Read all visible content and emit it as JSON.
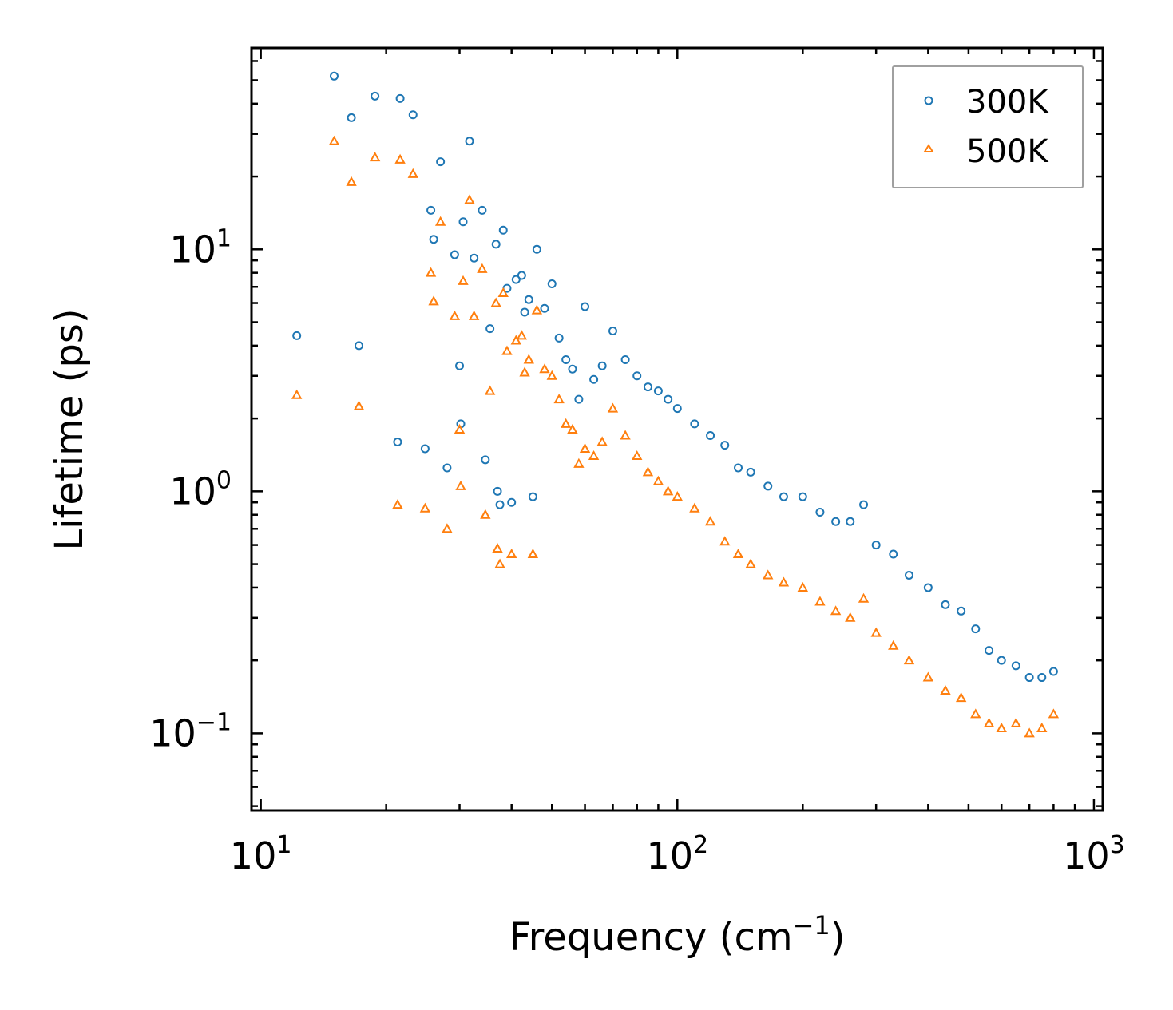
{
  "chart_data": {
    "type": "scatter",
    "title": "",
    "xlabel": "Frequency (cm",
    "xlabel_sup": "−1",
    "xlabel_suffix": ")",
    "ylabel": "Lifetime (ps)",
    "xscale": "log",
    "yscale": "log",
    "xlim": [
      9.5,
      1050
    ],
    "ylim": [
      0.048,
      68
    ],
    "x_ticks": [
      {
        "value": 10,
        "base": "10",
        "exp": "1"
      },
      {
        "value": 100,
        "base": "10",
        "exp": "2"
      },
      {
        "value": 1000,
        "base": "10",
        "exp": "3"
      }
    ],
    "y_ticks": [
      {
        "value": 0.1,
        "base": "10",
        "exp": "−1"
      },
      {
        "value": 1,
        "base": "10",
        "exp": "0"
      },
      {
        "value": 10,
        "base": "10",
        "exp": "1"
      }
    ],
    "legend_position": "top-right",
    "series": [
      {
        "name": "300K",
        "marker": "circle",
        "color": "#1f77b4",
        "x": [
          12.2,
          15.0,
          16.5,
          17.2,
          18.8,
          21.3,
          21.6,
          23.2,
          24.8,
          25.6,
          26.0,
          27.0,
          28.0,
          29.2,
          30.0,
          30.2,
          30.6,
          31.7,
          32.5,
          34.0,
          34.6,
          35.5,
          36.7,
          37.0,
          37.5,
          38.2,
          39.0,
          40.0,
          41.0,
          42.3,
          43.0,
          44.0,
          45.0,
          46.0,
          48.0,
          50.0,
          52.0,
          54.0,
          56.0,
          58.0,
          60.0,
          63.0,
          66.0,
          70.0,
          75.0,
          80.0,
          85.0,
          90.0,
          95.0,
          100.0,
          110.0,
          120.0,
          130.0,
          140.0,
          150.0,
          165.0,
          180.0,
          200.0,
          220.0,
          240.0,
          260.0,
          280.0,
          300.0,
          330.0,
          360.0,
          400.0,
          440.0,
          480.0,
          520.0,
          560.0,
          600.0,
          650.0,
          700.0,
          750.0,
          800.0
        ],
        "y": [
          4.4,
          52.0,
          35.0,
          4.0,
          43.0,
          1.6,
          42.0,
          36.0,
          1.5,
          14.5,
          11.0,
          23.0,
          1.25,
          9.5,
          3.3,
          1.9,
          13.0,
          28.0,
          9.2,
          14.5,
          1.35,
          4.7,
          10.5,
          1.0,
          0.88,
          12.0,
          6.9,
          0.9,
          7.5,
          7.8,
          5.5,
          6.2,
          0.95,
          10.0,
          5.7,
          7.2,
          4.3,
          3.5,
          3.2,
          2.4,
          5.8,
          2.9,
          3.3,
          4.6,
          3.5,
          3.0,
          2.7,
          2.6,
          2.4,
          2.2,
          1.9,
          1.7,
          1.55,
          1.25,
          1.2,
          1.05,
          0.95,
          0.95,
          0.82,
          0.75,
          0.75,
          0.88,
          0.6,
          0.55,
          0.45,
          0.4,
          0.34,
          0.32,
          0.27,
          0.22,
          0.2,
          0.19,
          0.17,
          0.17,
          0.18
        ]
      },
      {
        "name": "500K",
        "marker": "triangle",
        "color": "#ff7f0e",
        "x": [
          12.2,
          15.0,
          16.5,
          17.2,
          18.8,
          21.3,
          21.6,
          23.2,
          24.8,
          25.6,
          26.0,
          27.0,
          28.0,
          29.2,
          30.0,
          30.2,
          30.6,
          31.7,
          32.5,
          34.0,
          34.6,
          35.5,
          36.7,
          37.0,
          37.5,
          38.2,
          39.0,
          40.0,
          41.0,
          42.3,
          43.0,
          44.0,
          45.0,
          46.0,
          48.0,
          50.0,
          52.0,
          54.0,
          56.0,
          58.0,
          60.0,
          63.0,
          66.0,
          70.0,
          75.0,
          80.0,
          85.0,
          90.0,
          95.0,
          100.0,
          110.0,
          120.0,
          130.0,
          140.0,
          150.0,
          165.0,
          180.0,
          200.0,
          220.0,
          240.0,
          260.0,
          280.0,
          300.0,
          330.0,
          360.0,
          400.0,
          440.0,
          480.0,
          520.0,
          560.0,
          600.0,
          650.0,
          700.0,
          750.0,
          800.0
        ],
        "y": [
          2.5,
          28.0,
          19.0,
          2.25,
          24.0,
          0.88,
          23.5,
          20.5,
          0.85,
          8.0,
          6.1,
          13.0,
          0.7,
          5.3,
          1.8,
          1.05,
          7.4,
          16.0,
          5.3,
          8.3,
          0.8,
          2.6,
          6.0,
          0.58,
          0.5,
          6.6,
          3.8,
          0.55,
          4.2,
          4.4,
          3.1,
          3.5,
          0.55,
          5.6,
          3.2,
          3.0,
          2.4,
          1.9,
          1.8,
          1.3,
          1.5,
          1.4,
          1.6,
          2.2,
          1.7,
          1.4,
          1.2,
          1.1,
          1.0,
          0.95,
          0.85,
          0.75,
          0.62,
          0.55,
          0.5,
          0.45,
          0.42,
          0.4,
          0.35,
          0.32,
          0.3,
          0.36,
          0.26,
          0.23,
          0.2,
          0.17,
          0.15,
          0.14,
          0.12,
          0.11,
          0.105,
          0.11,
          0.1,
          0.105,
          0.12
        ]
      }
    ]
  }
}
